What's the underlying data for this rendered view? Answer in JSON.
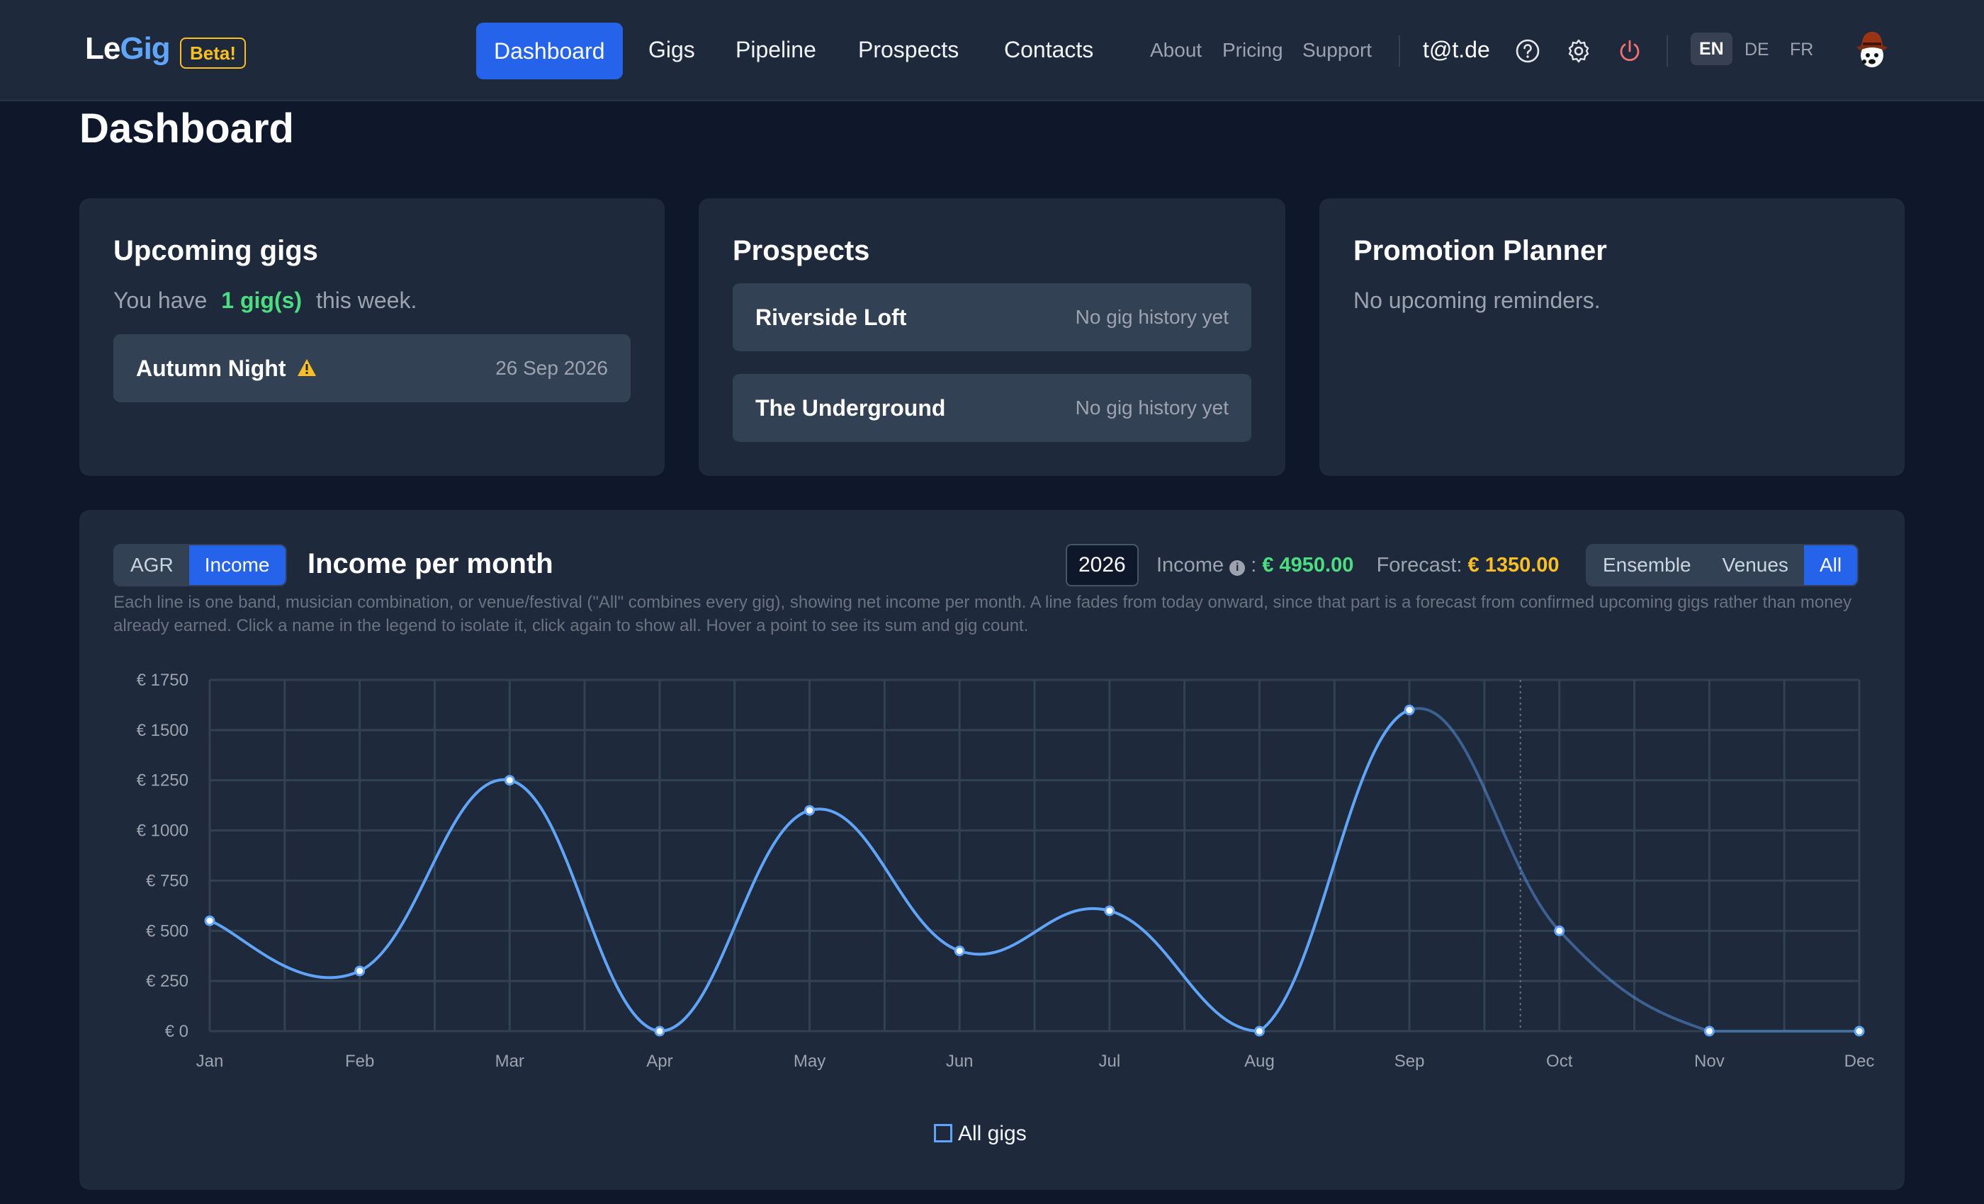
{
  "nav": {
    "logo_le": "Le",
    "logo_gig": "Gig",
    "beta": "Beta!",
    "main_links": [
      "Dashboard",
      "Gigs",
      "Pipeline",
      "Prospects",
      "Contacts"
    ],
    "sub_links": [
      "About",
      "Pricing",
      "Support"
    ],
    "user": "t@t.de",
    "languages": [
      "EN",
      "DE",
      "FR"
    ],
    "active_language": "EN",
    "icons": [
      "help-icon",
      "gear-icon",
      "power-icon"
    ]
  },
  "page": {
    "title": "Dashboard"
  },
  "upcoming": {
    "title": "Upcoming gigs",
    "prefix": "You have",
    "count": "1 gig(s)",
    "suffix": "this week.",
    "gigs": [
      {
        "name": "Autumn Night",
        "date": "26 Sep 2026",
        "icon": "warning-icon"
      }
    ]
  },
  "prospects": {
    "title": "Prospects",
    "items": [
      {
        "name": "Riverside Loft",
        "meta": "No gig history yet"
      },
      {
        "name": "The Underground",
        "meta": "No gig history yet"
      }
    ]
  },
  "promotion": {
    "title": "Promotion Planner",
    "empty": "No upcoming reminders."
  },
  "income_chart": {
    "mode_toggle": [
      "AGR",
      "Income"
    ],
    "active_mode": "Income",
    "title": "Income per month",
    "year": "2026",
    "income_label": "Income",
    "income_value": "€ 4950.00",
    "forecast_label": "Forecast:",
    "forecast_value": "€ 1350.00",
    "group_toggle": [
      "Ensemble",
      "Venues",
      "All"
    ],
    "active_group": "All",
    "description": "Each line is one band, musician combination, or venue/festival (\"All\" combines every gig), showing net income per month. A line fades from today onward, since that part is a forecast from confirmed upcoming gigs rather than money already earned. Click a name in the legend to isolate it, click again to show all. Hover a point to see its sum and gig count.",
    "legend": "All gigs",
    "line_color": "#60a5fa"
  },
  "chart_data": {
    "type": "line",
    "categories": [
      "Jan",
      "Feb",
      "Mar",
      "Apr",
      "May",
      "Jun",
      "Jul",
      "Aug",
      "Sep",
      "Oct",
      "Nov",
      "Dec"
    ],
    "series": [
      {
        "name": "All gigs",
        "values": [
          550,
          300,
          1250,
          0,
          1100,
          400,
          600,
          0,
          1600,
          500,
          0,
          0
        ]
      }
    ],
    "y_ticks": [
      "€ 0",
      "€ 250",
      "€ 500",
      "€ 750",
      "€ 1000",
      "€ 1250",
      "€ 1500",
      "€ 1750"
    ],
    "ylim": [
      0,
      1750
    ],
    "today_marker": "late September",
    "forecast_from_index": 9,
    "grid": true,
    "legend_position": "bottom"
  }
}
